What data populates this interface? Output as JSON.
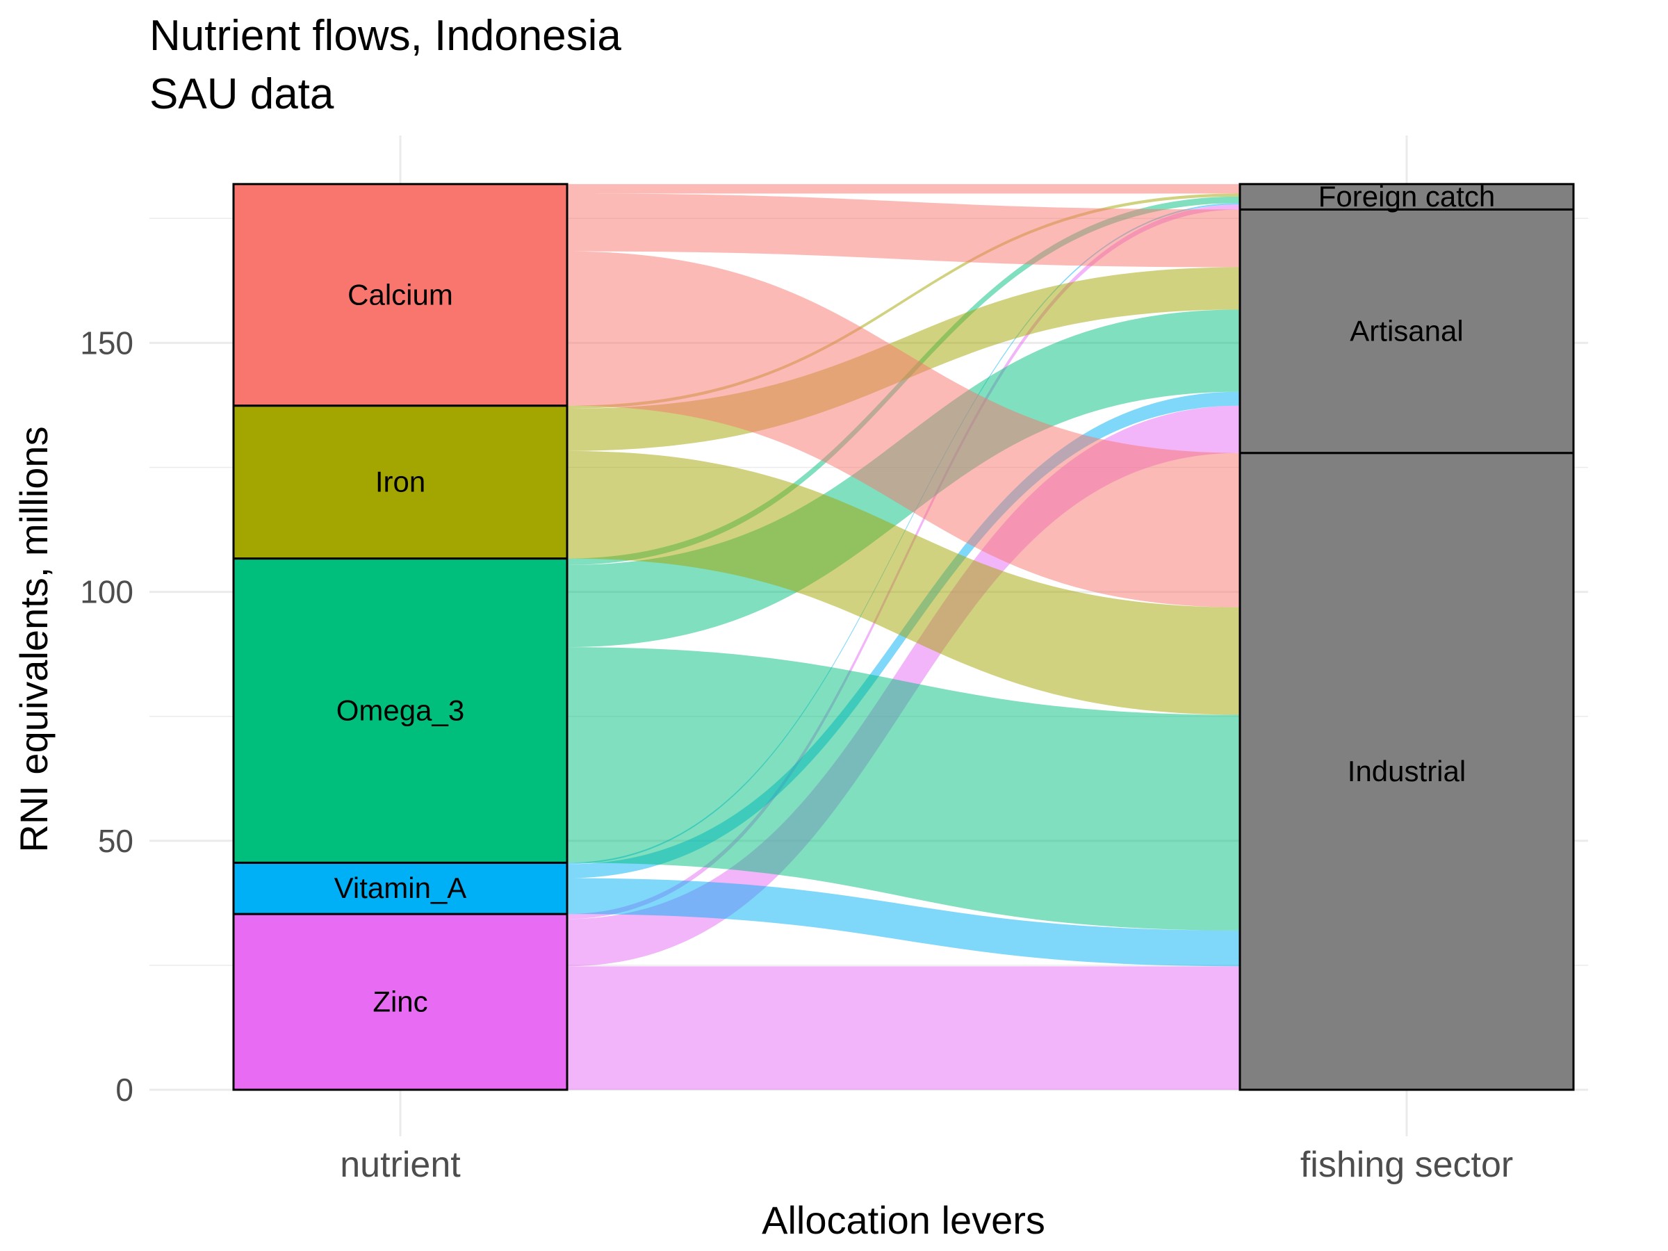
{
  "chart_data": {
    "type": "alluvial",
    "title": "Nutrient flows, Indonesia",
    "subtitle": "SAU data",
    "xlabel": "Allocation levers",
    "ylabel": "RNI equivalents, millions",
    "ylim": [
      0,
      182
    ],
    "yticks": [
      0,
      50,
      100,
      150
    ],
    "grid": true,
    "axes": [
      "nutrient",
      "fishing sector"
    ],
    "nutrients": [
      {
        "name": "Zinc",
        "value": 35.3,
        "color": "#E76BF3"
      },
      {
        "name": "Vitamin_A",
        "value": 10.3,
        "color": "#00B0F6"
      },
      {
        "name": "Omega_3",
        "value": 61.1,
        "color": "#00BF7D"
      },
      {
        "name": "Iron",
        "value": 30.7,
        "color": "#A3A500"
      },
      {
        "name": "Calcium",
        "value": 44.5,
        "color": "#F8766D"
      }
    ],
    "sectors": [
      {
        "name": "Industrial",
        "value": 127.9,
        "color": "#808080"
      },
      {
        "name": "Artisanal",
        "value": 48.9,
        "color": "#808080"
      },
      {
        "name": "Foreign catch",
        "value": 5.1,
        "color": "#808080"
      }
    ],
    "flows": [
      {
        "nutrient": "Zinc",
        "sector": "Industrial",
        "value": 24.8
      },
      {
        "nutrient": "Zinc",
        "sector": "Artisanal",
        "value": 9.5
      },
      {
        "nutrient": "Zinc",
        "sector": "Foreign catch",
        "value": 1.0
      },
      {
        "nutrient": "Vitamin_A",
        "sector": "Industrial",
        "value": 7.2
      },
      {
        "nutrient": "Vitamin_A",
        "sector": "Artisanal",
        "value": 2.8
      },
      {
        "nutrient": "Vitamin_A",
        "sector": "Foreign catch",
        "value": 0.3
      },
      {
        "nutrient": "Omega_3",
        "sector": "Industrial",
        "value": 43.3
      },
      {
        "nutrient": "Omega_3",
        "sector": "Artisanal",
        "value": 16.5
      },
      {
        "nutrient": "Omega_3",
        "sector": "Foreign catch",
        "value": 1.3
      },
      {
        "nutrient": "Iron",
        "sector": "Industrial",
        "value": 21.6
      },
      {
        "nutrient": "Iron",
        "sector": "Artisanal",
        "value": 8.5
      },
      {
        "nutrient": "Iron",
        "sector": "Foreign catch",
        "value": 0.6
      },
      {
        "nutrient": "Calcium",
        "sector": "Industrial",
        "value": 31.0
      },
      {
        "nutrient": "Calcium",
        "sector": "Artisanal",
        "value": 11.6
      },
      {
        "nutrient": "Calcium",
        "sector": "Foreign catch",
        "value": 1.9
      }
    ]
  }
}
